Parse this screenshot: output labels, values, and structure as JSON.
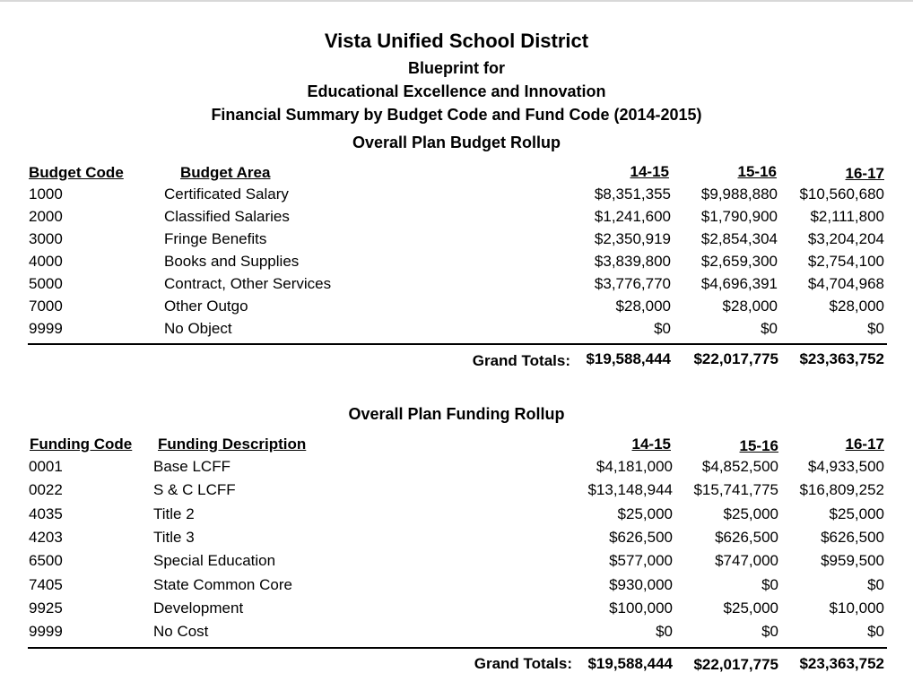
{
  "header": {
    "district": "Vista Unified School District",
    "line1": "Blueprint for",
    "line2": "Educational Excellence and Innovation",
    "line3": "Financial Summary by Budget Code and Fund Code (2014-2015)"
  },
  "budget": {
    "title": "Overall Plan Budget Rollup",
    "columns": {
      "code": "Budget Code",
      "area": "Budget Area",
      "y1": "14-15",
      "y2": "15-16",
      "y3": "16-17"
    },
    "rows": [
      {
        "code": "1000",
        "area": "Certificated Salary",
        "y1": "$8,351,355",
        "y2": "$9,988,880",
        "y3": "$10,560,680"
      },
      {
        "code": "2000",
        "area": "Classified Salaries",
        "y1": "$1,241,600",
        "y2": "$1,790,900",
        "y3": "$2,111,800"
      },
      {
        "code": "3000",
        "area": "Fringe Benefits",
        "y1": "$2,350,919",
        "y2": "$2,854,304",
        "y3": "$3,204,204"
      },
      {
        "code": "4000",
        "area": "Books and Supplies",
        "y1": "$3,839,800",
        "y2": "$2,659,300",
        "y3": "$2,754,100"
      },
      {
        "code": "5000",
        "area": "Contract, Other Services",
        "y1": "$3,776,770",
        "y2": "$4,696,391",
        "y3": "$4,704,968"
      },
      {
        "code": "7000",
        "area": "Other Outgo",
        "y1": "$28,000",
        "y2": "$28,000",
        "y3": "$28,000"
      },
      {
        "code": "9999",
        "area": "No Object",
        "y1": "$0",
        "y2": "$0",
        "y3": "$0"
      }
    ],
    "totals": {
      "label": "Grand Totals:",
      "y1": "$19,588,444",
      "y2": "$22,017,775",
      "y3": "$23,363,752"
    }
  },
  "funding": {
    "title": "Overall Plan Funding Rollup",
    "columns": {
      "code": "Funding Code",
      "area": "Funding Description",
      "y1": "14-15",
      "y2": "15-16",
      "y3": "16-17"
    },
    "rows": [
      {
        "code": "0001",
        "area": "Base LCFF",
        "y1": "$4,181,000",
        "y2": "$4,852,500",
        "y3": "$4,933,500"
      },
      {
        "code": "0022",
        "area": "S & C LCFF",
        "y1": "$13,148,944",
        "y2": "$15,741,775",
        "y3": "$16,809,252"
      },
      {
        "code": "4035",
        "area": "Title 2",
        "y1": "$25,000",
        "y2": "$25,000",
        "y3": "$25,000"
      },
      {
        "code": "4203",
        "area": "Title 3",
        "y1": "$626,500",
        "y2": "$626,500",
        "y3": "$626,500"
      },
      {
        "code": "6500",
        "area": "Special Education",
        "y1": "$577,000",
        "y2": "$747,000",
        "y3": "$959,500"
      },
      {
        "code": "7405",
        "area": "State Common Core",
        "y1": "$930,000",
        "y2": "$0",
        "y3": "$0"
      },
      {
        "code": "9925",
        "area": "Development",
        "y1": "$100,000",
        "y2": "$25,000",
        "y3": "$10,000"
      },
      {
        "code": "9999",
        "area": "No Cost",
        "y1": "$0",
        "y2": "$0",
        "y3": "$0"
      }
    ],
    "totals": {
      "label": "Grand Totals:",
      "y1": "$19,588,444",
      "y2": "$22,017,775",
      "y3": "$23,363,752"
    }
  }
}
